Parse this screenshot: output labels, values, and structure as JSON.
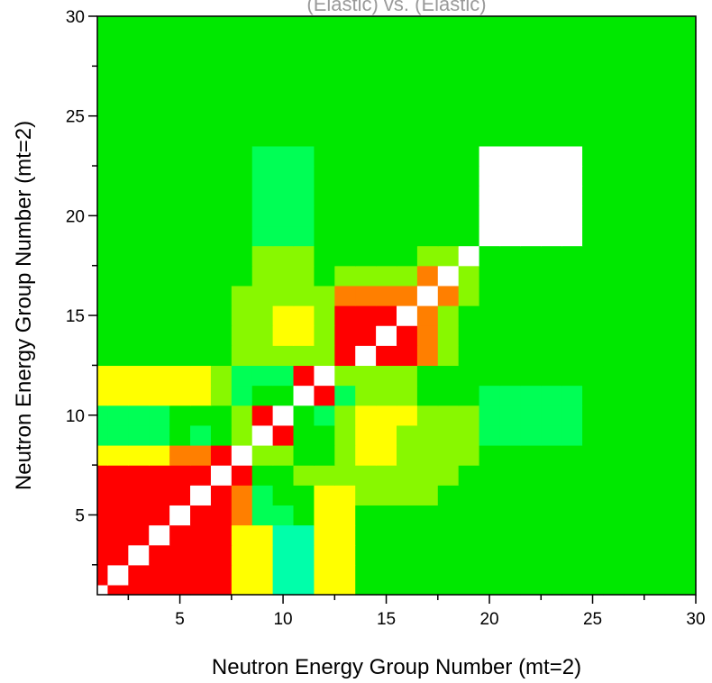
{
  "chart_data": {
    "type": "heatmap",
    "title": "(Elastic) vs. (Elastic)",
    "xlabel": "Neutron Energy Group Number (mt=2)",
    "ylabel": "Neutron Energy Group Number (mt=2)",
    "xlim": [
      1,
      30
    ],
    "ylim": [
      1,
      30
    ],
    "x_ticks": [
      5,
      10,
      15,
      20,
      25,
      30
    ],
    "y_ticks": [
      5,
      10,
      15,
      20,
      25,
      30
    ],
    "colors": {
      "G": "#00e800",
      "L": "#88f800",
      "Y": "#ffff00",
      "O": "#ff7f00",
      "R": "#ff0000",
      "C": "#00ff55",
      "Q": "#00ffaa",
      "W": "#ffffff"
    },
    "cells": [
      "WRRRRRRYYQQYYGGGGGGGGGGGGGGGGG",
      "RWRRRRRYYQQYYGGGGGGGGGGGGGGGGG",
      "RRWRRRRYYQQYYGGGGGGGGGGGGGGGGG",
      "RRRWRRRYYQQYYGGGGGGGGGGGGGGGGG",
      "RRRRWRROCCGYYGGGGGGGGGGGGGGGGG",
      "RRRRRWROCGGYYLLLLGGGGGGGGGGGGG",
      "RRRRRRWRGGLLLLLLLLGGGGGGGGGGGG",
      "YYYYOORWLLGGLYYLLLLGGGGGGGGGGG",
      "CCCCGCGLWRGGLYYLLLLCCCCCGGGGGG",
      "CCCCGGGLRWGCLYYYLLLCCCCCGGGGGG",
      "YYYYYYLCGGWRCLLLGGGCCCCCGGGGGG",
      "YYYYYYLCCCRWLLLLGGGGGGGGGGGGGG",
      "GGGGGGGLLLLLRWRROLGGGGGGGGGGGG",
      "GGGGGGGLLYYLRRWROLGGGGGGGGGGGG",
      "GGGGGGGLLYYLRRRWOLGGGGGGGGGGGG",
      "GGGGGGGLLLLLOOOOWOLGGGGGGGGGGG",
      "GGGGGGGGLLLGLLLLOWLGGGGGGGGGGG",
      "GGGGGGGGLLLGGGGGLLWGGGGGGGGGGG",
      "GGGGGGGGCCCGGGGGGGGWWWWWGGGGGG",
      "GGGGGGGGCCCGGGGGGGGWWWWWGGGGGG",
      "GGGGGGGGCCCGGGGGGGGWWWWWGGGGGG",
      "GGGGGGGGCCCGGGGGGGGWWWWWGGGGGG",
      "GGGGGGGGCCCGGGGGGGGWWWWWGGGGGG",
      "GGGGGGGGGGGGGGGGGGGGGGGGGGGGGG",
      "GGGGGGGGGGGGGGGGGGGGGGGGGGGGGG",
      "GGGGGGGGGGGGGGGGGGGGGGGGGGGGGG",
      "GGGGGGGGGGGGGGGGGGGGGGGGGGGGGG",
      "GGGGGGGGGGGGGGGGGGGGGGGGGGGGGG",
      "GGGGGGGGGGGGGGGGGGGGGGGGGGGGGG",
      "GGGGGGGGGGGGGGGGGGGGGGGGGGGGGG"
    ]
  }
}
